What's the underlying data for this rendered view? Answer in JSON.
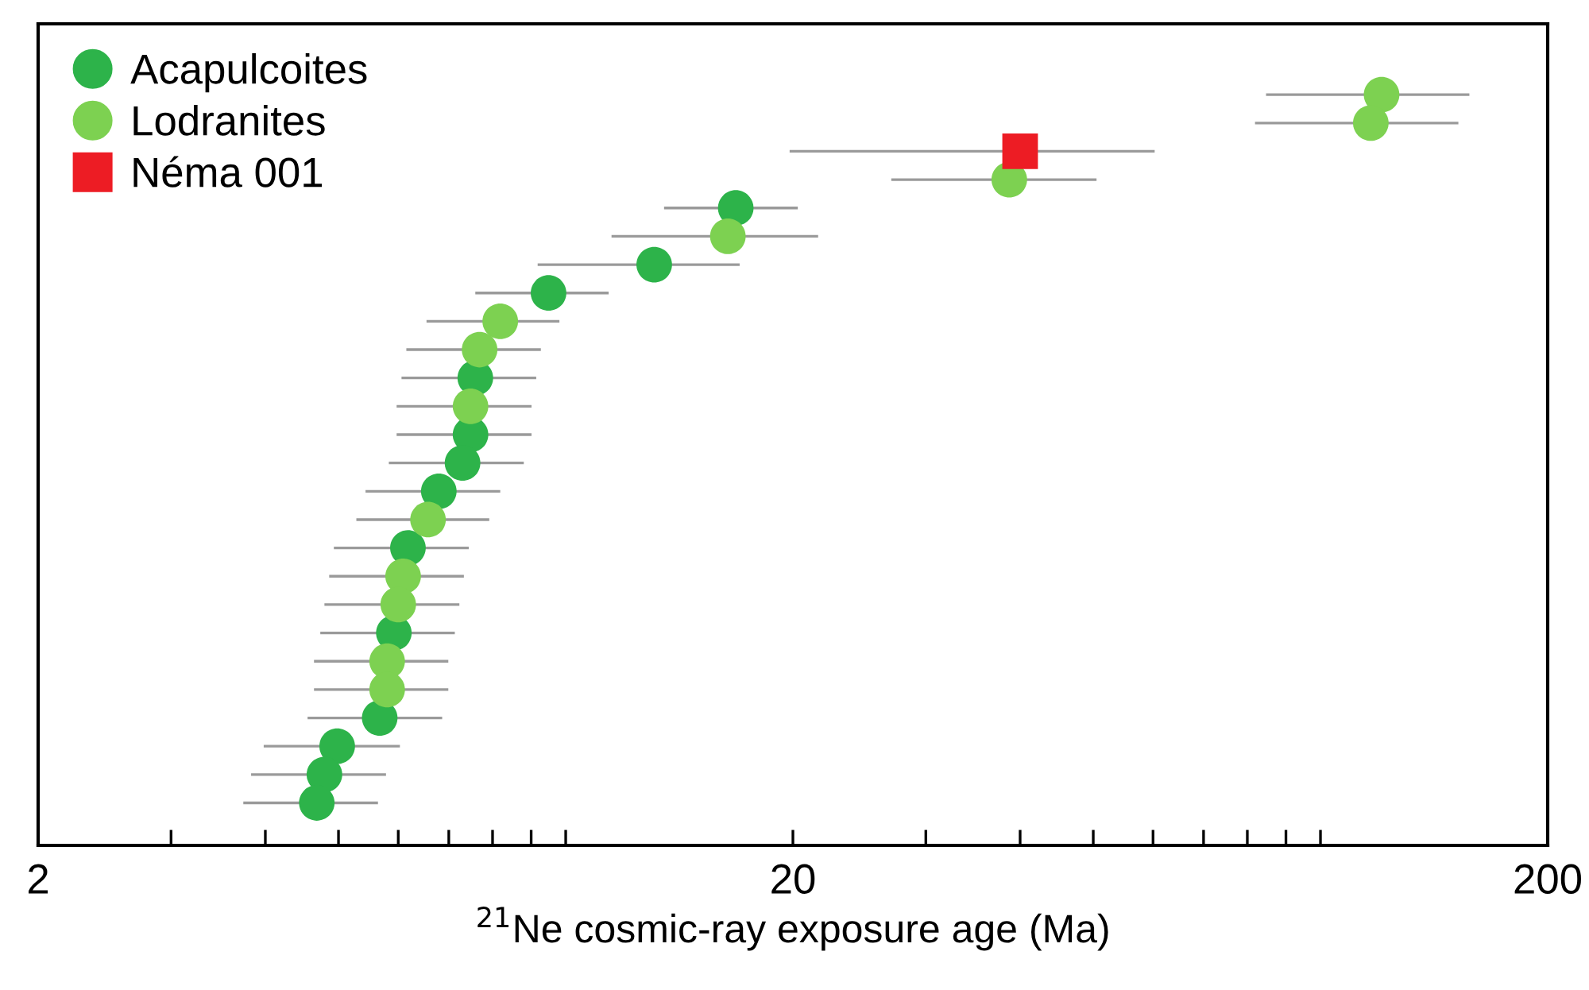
{
  "chart_data": {
    "type": "scatter",
    "orientation": "horizontal",
    "xlabel": "$^{21}$Ne cosmic-ray exposure age (Ma)",
    "log": "x",
    "categories": [
      null,
      null,
      null,
      null,
      null,
      null,
      null,
      null,
      null,
      null,
      null,
      null,
      null,
      null,
      null,
      null,
      null,
      null,
      null,
      null,
      null,
      null,
      null,
      null,
      null,
      null,
      null,
      null,
      null
    ],
    "xlim": [
      2,
      200
    ],
    "xticks": [
      2,
      {
        "value": 3,
        "label": null
      },
      {
        "value": 4,
        "label": null
      },
      {
        "value": 5,
        "label": null
      },
      {
        "value": 6,
        "label": null
      },
      {
        "value": 7,
        "label": null
      },
      {
        "value": 8,
        "label": null
      },
      {
        "value": 9,
        "label": null
      },
      {
        "value": 10,
        "label": null
      },
      20,
      {
        "value": 30,
        "label": null
      },
      {
        "value": 40,
        "label": null
      },
      {
        "value": 50,
        "label": null
      },
      {
        "value": 60,
        "label": null
      },
      {
        "value": 70,
        "label": null
      },
      {
        "value": 80,
        "label": null
      },
      {
        "value": 90,
        "label": null
      },
      {
        "value": 100,
        "label": null
      },
      200
    ],
    "legend": "top left",
    "grid": false,
    "series": [
      {
        "name": "Acapulcoites",
        "color": "#2db34a",
        "marker": "circle",
        "values": [
          null,
          null,
          null,
          null,
          null,
          null,
          16.8,
          null,
          13.1,
          9.49,
          null,
          null,
          7.59,
          null,
          7.48,
          7.3,
          6.79,
          null,
          6.18,
          null,
          null,
          5.92,
          null,
          null,
          5.67,
          4.98,
          4.79,
          4.68,
          null
        ],
        "errors": [
          null,
          null,
          null,
          null,
          null,
          null,
          [
            13.5,
            20.3
          ],
          null,
          [
            9.18,
            17.0
          ],
          [
            7.59,
            11.4
          ],
          null,
          null,
          [
            6.06,
            9.14
          ],
          null,
          [
            5.97,
            9.01
          ],
          [
            5.83,
            8.8
          ],
          [
            5.43,
            8.19
          ],
          null,
          [
            4.93,
            7.44
          ],
          null,
          null,
          [
            4.73,
            7.13
          ],
          null,
          null,
          [
            4.55,
            6.86
          ],
          [
            3.98,
            6.03
          ],
          [
            3.83,
            5.78
          ],
          [
            3.74,
            5.64
          ],
          null
        ]
      },
      {
        "name": "Lodranites",
        "color": "#7dd151",
        "marker": "circle",
        "values": [
          null,
          null,
          120.5,
          116.6,
          null,
          38.7,
          null,
          16.4,
          null,
          null,
          8.19,
          7.69,
          null,
          7.48,
          null,
          null,
          null,
          6.57,
          null,
          6.09,
          6.0,
          null,
          5.8,
          5.8,
          null,
          null,
          null,
          null,
          null
        ],
        "errors": [
          null,
          null,
          [
            84.7,
            157.5
          ],
          [
            81.9,
            152.3
          ],
          null,
          [
            27.0,
            50.5
          ],
          null,
          [
            11.5,
            21.6
          ],
          null,
          null,
          [
            6.54,
            9.81
          ],
          [
            6.15,
            9.27
          ],
          null,
          [
            5.97,
            9.01
          ],
          null,
          null,
          null,
          [
            5.28,
            7.92
          ],
          null,
          [
            4.86,
            7.33
          ],
          [
            4.79,
            7.23
          ],
          null,
          [
            4.64,
            6.99
          ],
          [
            4.64,
            6.99
          ],
          null,
          null,
          null,
          null,
          null
        ]
      },
      {
        "name": "Néma 001",
        "color": "#ed1c24",
        "marker": "square",
        "values": [
          null,
          null,
          null,
          null,
          40.0,
          null,
          null,
          null,
          null,
          null,
          null,
          null,
          null,
          null,
          null,
          null,
          null,
          null,
          null,
          null,
          null,
          null,
          null,
          null,
          null,
          null,
          null,
          null,
          null
        ],
        "errors": [
          null,
          null,
          null,
          null,
          [
            19.8,
            60.3
          ],
          null,
          null,
          null,
          null,
          null,
          null,
          null,
          null,
          null,
          null,
          null,
          null,
          null,
          null,
          null,
          null,
          null,
          null,
          null,
          null,
          null,
          null,
          null,
          null
        ]
      }
    ]
  }
}
